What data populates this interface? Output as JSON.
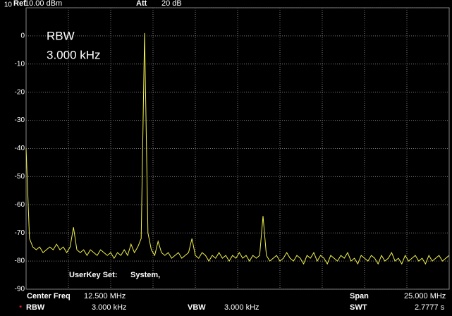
{
  "header": {
    "ref_label": "Ref",
    "ref_value": "10.00 dBm",
    "att_label": "Att",
    "att_value": "20 dB"
  },
  "overlay": {
    "rbw_label": "RBW",
    "rbw_value": "3.000 kHz",
    "userkey_label": "UserKey Set:",
    "userkey_value": "System,"
  },
  "footer": {
    "center_label": "Center Freq",
    "center_value": "12.500 MHz",
    "span_label": "Span",
    "span_value": "25.000 MHz",
    "rbw_flag": "*",
    "rbw_label": "RBW",
    "rbw_value": "3.000 kHz",
    "vbw_label": "VBW",
    "vbw_value": "3.000 kHz",
    "swt_label": "SWT",
    "swt_value": "2.7777 s"
  },
  "chart_data": {
    "type": "line",
    "grid": true,
    "xlim": [
      0,
      25
    ],
    "ylim": [
      -90,
      10
    ],
    "yticks": [
      10,
      0,
      -10,
      -20,
      -30,
      -40,
      -50,
      -60,
      -70,
      -80,
      -90
    ],
    "x": [
      0,
      0.2,
      0.4,
      0.6,
      0.8,
      1,
      1.2,
      1.4,
      1.6,
      1.8,
      2,
      2.2,
      2.4,
      2.6,
      2.8,
      3,
      3.2,
      3.4,
      3.6,
      3.8,
      4,
      4.2,
      4.4,
      4.6,
      4.8,
      5,
      5.2,
      5.4,
      5.6,
      5.8,
      6,
      6.2,
      6.4,
      6.6,
      6.8,
      7,
      7.2,
      7.4,
      7.6,
      7.8,
      8,
      8.2,
      8.4,
      8.6,
      8.8,
      9,
      9.2,
      9.4,
      9.6,
      9.8,
      10,
      10.2,
      10.4,
      10.6,
      10.8,
      11,
      11.2,
      11.4,
      11.6,
      11.8,
      12,
      12.2,
      12.4,
      12.6,
      12.8,
      13,
      13.2,
      13.4,
      13.6,
      13.8,
      14,
      14.2,
      14.4,
      14.6,
      14.8,
      15,
      15.2,
      15.4,
      15.6,
      15.8,
      16,
      16.2,
      16.4,
      16.6,
      16.8,
      17,
      17.2,
      17.4,
      17.6,
      17.8,
      18,
      18.2,
      18.4,
      18.6,
      18.8,
      19,
      19.2,
      19.4,
      19.6,
      19.8,
      20,
      20.2,
      20.4,
      20.6,
      20.8,
      21,
      21.2,
      21.4,
      21.6,
      21.8,
      22,
      22.2,
      22.4,
      22.6,
      22.8,
      23,
      23.2,
      23.4,
      23.6,
      23.8,
      24,
      24.2,
      24.4,
      24.6,
      24.8,
      25
    ],
    "series": [
      {
        "color": "#f2f24a",
        "values": [
          -40,
          -72,
          -75,
          -76,
          -75,
          -77,
          -76,
          -75,
          -76,
          -74,
          -76,
          -75,
          -77,
          -75,
          -68,
          -76,
          -77,
          -76,
          -78,
          -76,
          -77,
          -78,
          -76,
          -77,
          -78,
          -77,
          -79,
          -77,
          -78,
          -76,
          -78,
          -74,
          -77,
          -75,
          -72,
          1,
          -70,
          -76,
          -78,
          -73,
          -77,
          -78,
          -77,
          -79,
          -78,
          -77,
          -79,
          -78,
          -77,
          -72,
          -78,
          -79,
          -77,
          -78,
          -80,
          -78,
          -79,
          -77,
          -79,
          -78,
          -80,
          -78,
          -79,
          -77,
          -79,
          -78,
          -80,
          -78,
          -79,
          -78,
          -64,
          -78,
          -80,
          -79,
          -78,
          -80,
          -79,
          -77,
          -79,
          -80,
          -78,
          -79,
          -81,
          -78,
          -79,
          -77,
          -80,
          -78,
          -79,
          -81,
          -78,
          -79,
          -80,
          -78,
          -79,
          -77,
          -80,
          -79,
          -81,
          -78,
          -79,
          -80,
          -78,
          -79,
          -81,
          -78,
          -80,
          -79,
          -77,
          -80,
          -79,
          -81,
          -78,
          -80,
          -79,
          -78,
          -80,
          -79,
          -81,
          -78,
          -80,
          -79,
          -78,
          -80,
          -79,
          -78
        ]
      }
    ]
  }
}
